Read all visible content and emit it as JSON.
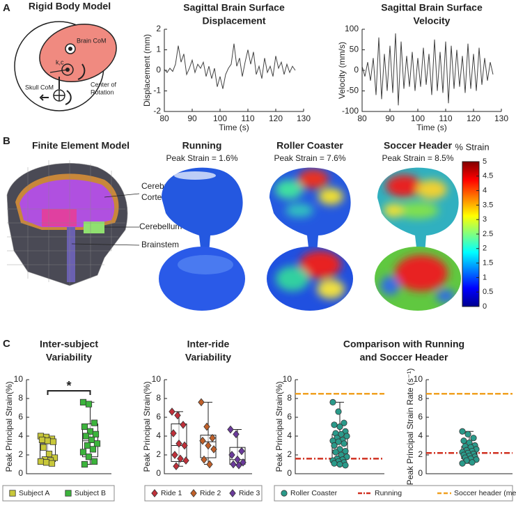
{
  "panel_labels": [
    "A",
    "B",
    "C"
  ],
  "rigid_body_model": {
    "title": "Rigid Body Model",
    "labels": [
      "Brain CoM",
      "k,c",
      "Skull CoM",
      "Center of",
      "Rotation"
    ]
  },
  "finite_element_model": {
    "title": "Finite Element Model",
    "labels": [
      "Cerebral",
      "Cortex",
      "Cerebellum",
      "Brainstem"
    ]
  },
  "strain_maps": [
    {
      "title": "Running",
      "peak_strain": "Peak Strain = 1.6%"
    },
    {
      "title": "Roller Coaster",
      "peak_strain": "Peak Strain = 7.6%"
    },
    {
      "title": "Soccer Header",
      "peak_strain": "Peak Strain = 8.5%"
    }
  ],
  "comparison_title": [
    "Comparison with Running",
    "and Soccer Header"
  ],
  "chart_data": [
    {
      "type": "line",
      "title": [
        "Sagittal Brain Surface",
        "Displacement"
      ],
      "x_label": "Time (s)",
      "y_label": "Displacement (mm)",
      "color": "#404040",
      "x": [
        80,
        81,
        82,
        83,
        84,
        85,
        86,
        87,
        88,
        89,
        90,
        91,
        92,
        93,
        94,
        95,
        96,
        97,
        98,
        99,
        100,
        101,
        102,
        103,
        104,
        105,
        106,
        107,
        108,
        109,
        110,
        111,
        112,
        113,
        114,
        115,
        116,
        117,
        118,
        119,
        120,
        121,
        122,
        123,
        124,
        125,
        126,
        127
      ],
      "values": [
        0.05,
        -0.1,
        0.1,
        -0.05,
        0.3,
        1.2,
        0.4,
        0.8,
        -0.2,
        0.1,
        0.5,
        -0.1,
        0.3,
        0.1,
        0.4,
        -0.3,
        0.2,
        -0.4,
        0.1,
        -0.8,
        -0.3,
        -0.9,
        -0.2,
        0.1,
        0.3,
        1.3,
        0.2,
        0.6,
        -0.3,
        0.4,
        1.0,
        0.3,
        0.9,
        -0.2,
        0.2,
        -0.4,
        0.6,
        -0.1,
        0.2,
        -0.3,
        0.7,
        0.1,
        0.4,
        -0.2,
        0.3,
        -0.1,
        0.2,
        0.0
      ],
      "xlim": [
        80,
        130
      ],
      "xticks": [
        80,
        90,
        100,
        110,
        120,
        130
      ],
      "ylim": [
        -2,
        2
      ],
      "yticks": [
        -2,
        -1,
        0,
        1,
        2
      ]
    },
    {
      "type": "line",
      "title": [
        "Sagittal Brain Surface",
        "Velocity"
      ],
      "x_label": "Time (s)",
      "y_label": "Velocity (mm/s)",
      "color": "#404040",
      "x": [
        80,
        81,
        82,
        83,
        84,
        85,
        86,
        87,
        88,
        89,
        90,
        91,
        92,
        93,
        94,
        95,
        96,
        97,
        98,
        99,
        100,
        101,
        102,
        103,
        104,
        105,
        106,
        107,
        108,
        109,
        110,
        111,
        112,
        113,
        114,
        115,
        116,
        117,
        118,
        119,
        120,
        121,
        122,
        123,
        124,
        125,
        126,
        127
      ],
      "values": [
        10,
        -15,
        20,
        -25,
        30,
        -60,
        80,
        -70,
        40,
        -50,
        60,
        -55,
        90,
        -85,
        70,
        -45,
        35,
        -40,
        45,
        -50,
        30,
        -40,
        55,
        -35,
        40,
        -60,
        75,
        -50,
        45,
        -55,
        70,
        -80,
        60,
        -45,
        50,
        -40,
        35,
        -55,
        65,
        -45,
        40,
        -50,
        55,
        -35,
        30,
        -25,
        20,
        -10
      ],
      "xlim": [
        80,
        130
      ],
      "xticks": [
        80,
        90,
        100,
        110,
        120,
        130
      ],
      "ylim": [
        -100,
        100
      ],
      "yticks": [
        -100,
        -50,
        0,
        50,
        100
      ]
    },
    {
      "type": "colorbar",
      "title": "% Strain",
      "colormap": "jet",
      "ylim": [
        0,
        5
      ],
      "yticks": [
        0,
        0.5,
        1,
        1.5,
        2,
        2.5,
        3,
        3.5,
        4,
        4.5,
        5
      ]
    },
    {
      "type": "box",
      "title": [
        "Inter-subject",
        "Variability"
      ],
      "y_label": "Peak Principal Strain(%)",
      "ylim": [
        0,
        10
      ],
      "yticks": [
        0,
        2,
        4,
        6,
        8,
        10
      ],
      "annotation": "*",
      "legend": true,
      "groups": [
        {
          "name": "Subject A",
          "color": "#c8c83a",
          "marker": "square",
          "points": [
            4.0,
            3.9,
            3.7,
            3.6,
            3.5,
            3.4,
            2.8,
            2.1,
            1.7,
            1.5,
            1.4,
            1.3,
            1.2,
            1.1
          ],
          "box": {
            "whisker_low": 1.1,
            "q1": 1.3,
            "median": 1.6,
            "q3": 3.2,
            "whisker_high": 4.0
          }
        },
        {
          "name": "Subject B",
          "color": "#3cb43c",
          "marker": "square",
          "points": [
            7.6,
            7.4,
            5.4,
            5.0,
            4.5,
            4.2,
            4.0,
            3.6,
            3.2,
            3.0,
            2.6,
            2.3,
            1.8,
            1.3,
            1.0
          ],
          "box": {
            "whisker_low": 1.0,
            "q1": 1.8,
            "median": 3.5,
            "q3": 5.3,
            "whisker_high": 7.6
          }
        }
      ]
    },
    {
      "type": "box",
      "title": [
        "Inter-ride",
        "Variability"
      ],
      "y_label": "Peak Principal Strain(%)",
      "ylim": [
        0,
        10
      ],
      "yticks": [
        0,
        2,
        4,
        6,
        8,
        10
      ],
      "legend": true,
      "groups": [
        {
          "name": "Ride 1",
          "color": "#c0303a",
          "marker": "diamond",
          "points": [
            6.6,
            6.2,
            5.2,
            4.3,
            3.2,
            3.0,
            2.0,
            1.6,
            1.4,
            0.8
          ],
          "box": {
            "whisker_low": 0.8,
            "q1": 1.3,
            "median": 3.0,
            "q3": 5.3,
            "whisker_high": 6.6
          }
        },
        {
          "name": "Ride 2",
          "color": "#c0602a",
          "marker": "diamond",
          "points": [
            7.6,
            5.0,
            3.8,
            3.5,
            3.0,
            2.6,
            1.5,
            1.0
          ],
          "box": {
            "whisker_low": 1.0,
            "q1": 1.7,
            "median": 3.4,
            "q3": 4.1,
            "whisker_high": 7.6
          }
        },
        {
          "name": "Ride 3",
          "color": "#6a3a9a",
          "marker": "diamond",
          "points": [
            4.7,
            4.2,
            2.4,
            2.0,
            1.5,
            1.2,
            1.0,
            0.9
          ],
          "box": {
            "whisker_low": 0.9,
            "q1": 1.0,
            "median": 1.5,
            "q3": 2.8,
            "whisker_high": 4.7
          }
        }
      ]
    },
    {
      "type": "box",
      "y_label": "Peak Principal Strain(%)",
      "ylim": [
        0,
        10
      ],
      "yticks": [
        0,
        2,
        4,
        6,
        8,
        10
      ],
      "legend": true,
      "groups": [
        {
          "name": "Roller Coaster",
          "color": "#2a9a8a",
          "marker": "circle",
          "points": [
            7.6,
            6.6,
            5.4,
            5.2,
            5.0,
            4.5,
            4.3,
            4.2,
            4.0,
            3.8,
            3.6,
            3.5,
            3.4,
            3.2,
            3.0,
            2.6,
            2.4,
            2.3,
            2.0,
            1.8,
            1.6,
            1.5,
            1.4,
            1.3,
            1.2,
            1.1,
            1.0,
            0.9
          ],
          "box": {
            "whisker_low": 0.9,
            "q1": 1.5,
            "median": 2.5,
            "q3": 4.2,
            "whisker_high": 7.6
          }
        }
      ],
      "reference_lines": [
        {
          "name": "Running",
          "color": "#d03020",
          "value": 1.6
        },
        {
          "name": "Soccer header (median)",
          "color": "#f0a020",
          "value": 8.5
        }
      ]
    },
    {
      "type": "box",
      "y_label": "Peak Principal Strain Rate (s⁻¹)",
      "ylim": [
        0,
        10
      ],
      "yticks": [
        0,
        2,
        4,
        6,
        8,
        10
      ],
      "groups": [
        {
          "color": "#2a9a8a",
          "marker": "circle",
          "points": [
            4.5,
            4.2,
            3.8,
            3.5,
            3.3,
            3.0,
            2.9,
            2.8,
            2.6,
            2.5,
            2.4,
            2.3,
            2.2,
            2.1,
            2.0,
            1.9,
            1.8,
            1.7,
            1.6,
            1.5,
            1.4,
            1.2,
            1.1
          ],
          "box": {
            "whisker_low": 1.1,
            "q1": 1.6,
            "median": 2.2,
            "q3": 2.9,
            "whisker_high": 4.5
          }
        }
      ],
      "reference_lines": [
        {
          "color": "#d03020",
          "value": 2.2
        },
        {
          "color": "#f0a020",
          "value": 8.5
        }
      ]
    }
  ]
}
